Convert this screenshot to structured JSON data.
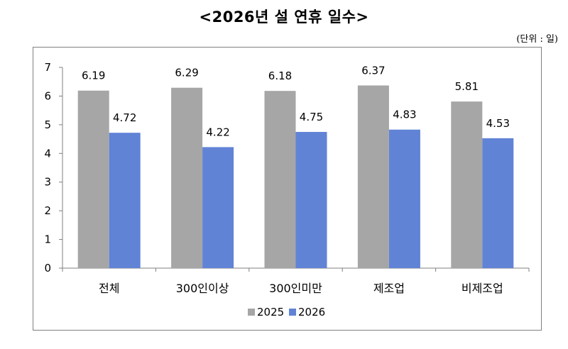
{
  "title": "<2026년 설 연휴 일수>",
  "unit_note": "(단위 : 일)",
  "chart_data": {
    "type": "bar",
    "categories": [
      "전체",
      "300인이상",
      "300인미만",
      "제조업",
      "비제조업"
    ],
    "series": [
      {
        "name": "2025",
        "values": [
          6.19,
          6.29,
          6.18,
          6.37,
          5.81
        ],
        "color": "#a6a6a6"
      },
      {
        "name": "2026",
        "values": [
          4.72,
          4.22,
          4.75,
          4.83,
          4.53
        ],
        "color": "#6183d6"
      }
    ],
    "ylim": [
      0,
      7
    ],
    "yticks": [
      0,
      1,
      2,
      3,
      4,
      5,
      6,
      7
    ],
    "legend_position": "bottom",
    "grid": false
  }
}
